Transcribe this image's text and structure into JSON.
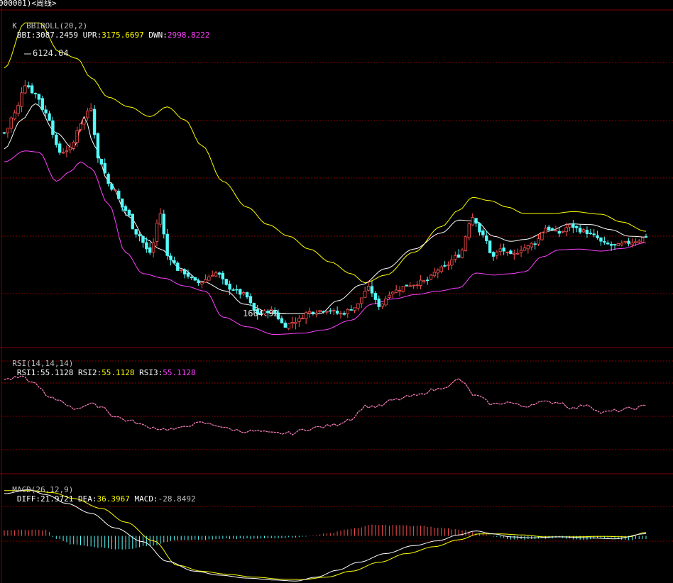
{
  "window": {
    "title": "000001)<周线>"
  },
  "panels": {
    "kline": {
      "indicator": "K  BBIBOLL(20,2)",
      "values": [
        {
          "label": "BBI:",
          "value": "3087.2459",
          "color": "#ffffff"
        },
        {
          "label": "UPR:",
          "value": "3175.6697",
          "color": "#ffff00"
        },
        {
          "label": "DWN:",
          "value": "2998.8222",
          "color": "#ff40ff"
        }
      ],
      "high_label": "6124.04",
      "low_label": "1664.92"
    },
    "rsi": {
      "indicator": "RSI(14,14,14)",
      "values": [
        {
          "label": "RSI1:",
          "value": "55.1128",
          "color": "#ffffff"
        },
        {
          "label": "RSI2:",
          "value": "55.1128",
          "color": "#ffff00"
        },
        {
          "label": "RSI3:",
          "value": "55.1128",
          "color": "#ff40ff"
        }
      ]
    },
    "macd": {
      "indicator": "MACD(26,12,9)",
      "values": [
        {
          "label": "DIFF:",
          "value": "21.9721",
          "color": "#ffffff"
        },
        {
          "label": "DEA:",
          "value": "36.3967",
          "color": "#ffff00"
        },
        {
          "label": "MACD:",
          "value": "-28.8492",
          "color": "#c0c0c0"
        }
      ]
    }
  },
  "colors": {
    "background": "#000000",
    "grid": "#800000",
    "up": "#ff5050",
    "down": "#54fcfc",
    "bbi": "#ffffff",
    "upr": "#ffff00",
    "dwn": "#ff40ff",
    "rsi": "#ff80c0",
    "diff": "#ffffff",
    "dea": "#ffff00"
  },
  "chart_data": [
    {
      "type": "candlestick",
      "ylim": [
        1400,
        6600
      ],
      "high": 6124.04,
      "low": 1664.92,
      "bbi_anchors": [
        [
          0,
          4450
        ],
        [
          5,
          4900
        ],
        [
          9,
          5150
        ],
        [
          15,
          4700
        ],
        [
          20,
          4450
        ],
        [
          23,
          4950
        ],
        [
          26,
          4500
        ],
        [
          30,
          3950
        ],
        [
          36,
          3400
        ],
        [
          41,
          3050
        ],
        [
          45,
          2900
        ],
        [
          51,
          2600
        ],
        [
          57,
          2400
        ],
        [
          64,
          2250
        ],
        [
          69,
          2050
        ],
        [
          78,
          1900
        ],
        [
          85,
          1900
        ],
        [
          91,
          1900
        ],
        [
          96,
          2100
        ],
        [
          103,
          2350
        ],
        [
          110,
          2600
        ],
        [
          118,
          2900
        ],
        [
          126,
          3150
        ],
        [
          131,
          3350
        ],
        [
          136,
          3330
        ],
        [
          141,
          3100
        ],
        [
          146,
          3020
        ],
        [
          150,
          3050
        ],
        [
          157,
          3180
        ],
        [
          163,
          3290
        ],
        [
          169,
          3280
        ],
        [
          175,
          3200
        ],
        [
          180,
          3100
        ],
        [
          185,
          3087
        ]
      ],
      "upr_anchors": [
        [
          0,
          5700
        ],
        [
          6,
          6400
        ],
        [
          10,
          6400
        ],
        [
          16,
          5950
        ],
        [
          21,
          5850
        ],
        [
          25,
          5550
        ],
        [
          30,
          5250
        ],
        [
          36,
          5100
        ],
        [
          42,
          4950
        ],
        [
          47,
          5100
        ],
        [
          52,
          4900
        ],
        [
          57,
          4500
        ],
        [
          63,
          3950
        ],
        [
          70,
          3550
        ],
        [
          76,
          3280
        ],
        [
          82,
          3100
        ],
        [
          88,
          2900
        ],
        [
          94,
          2700
        ],
        [
          100,
          2520
        ],
        [
          104,
          2380
        ],
        [
          110,
          2500
        ],
        [
          118,
          2850
        ],
        [
          126,
          3250
        ],
        [
          131,
          3500
        ],
        [
          135,
          3700
        ],
        [
          140,
          3650
        ],
        [
          145,
          3550
        ],
        [
          150,
          3450
        ],
        [
          158,
          3450
        ],
        [
          164,
          3480
        ],
        [
          172,
          3440
        ],
        [
          178,
          3320
        ],
        [
          185,
          3176
        ]
      ],
      "dwn_anchors": [
        [
          0,
          4250
        ],
        [
          6,
          4420
        ],
        [
          10,
          4400
        ],
        [
          15,
          3950
        ],
        [
          19,
          4100
        ],
        [
          22,
          4250
        ],
        [
          25,
          4150
        ],
        [
          30,
          3600
        ],
        [
          35,
          2850
        ],
        [
          40,
          2520
        ],
        [
          46,
          2450
        ],
        [
          52,
          2330
        ],
        [
          58,
          2250
        ],
        [
          63,
          1850
        ],
        [
          70,
          1700
        ],
        [
          78,
          1580
        ],
        [
          86,
          1600
        ],
        [
          92,
          1650
        ],
        [
          100,
          1800
        ],
        [
          106,
          2050
        ],
        [
          112,
          2130
        ],
        [
          119,
          2200
        ],
        [
          125,
          2250
        ],
        [
          131,
          2300
        ],
        [
          136,
          2530
        ],
        [
          141,
          2500
        ],
        [
          146,
          2520
        ],
        [
          150,
          2550
        ],
        [
          155,
          2780
        ],
        [
          160,
          2890
        ],
        [
          166,
          2900
        ],
        [
          172,
          2870
        ],
        [
          178,
          2910
        ],
        [
          185,
          2999
        ]
      ],
      "close_anchors": [
        [
          0,
          4700
        ],
        [
          3,
          5000
        ],
        [
          6,
          5450
        ],
        [
          9,
          5300
        ],
        [
          12,
          5000
        ],
        [
          16,
          4400
        ],
        [
          19,
          4450
        ],
        [
          22,
          4850
        ],
        [
          25,
          5100
        ],
        [
          27,
          4300
        ],
        [
          31,
          3850
        ],
        [
          35,
          3500
        ],
        [
          38,
          3150
        ],
        [
          42,
          2850
        ],
        [
          45,
          3450
        ],
        [
          47,
          2800
        ],
        [
          51,
          2550
        ],
        [
          56,
          2380
        ],
        [
          61,
          2530
        ],
        [
          65,
          2300
        ],
        [
          69,
          2200
        ],
        [
          73,
          1900
        ],
        [
          77,
          1950
        ],
        [
          81,
          1720
        ],
        [
          84,
          1790
        ],
        [
          88,
          1930
        ],
        [
          93,
          1960
        ],
        [
          97,
          1900
        ],
        [
          101,
          2000
        ],
        [
          105,
          2300
        ],
        [
          108,
          2030
        ],
        [
          112,
          2250
        ],
        [
          117,
          2350
        ],
        [
          121,
          2400
        ],
        [
          126,
          2600
        ],
        [
          131,
          2800
        ],
        [
          135,
          3400
        ],
        [
          138,
          3100
        ],
        [
          141,
          2780
        ],
        [
          143,
          2900
        ],
        [
          146,
          2800
        ],
        [
          150,
          2920
        ],
        [
          153,
          3000
        ],
        [
          156,
          3230
        ],
        [
          160,
          3150
        ],
        [
          163,
          3260
        ],
        [
          167,
          3180
        ],
        [
          170,
          3100
        ],
        [
          173,
          2980
        ],
        [
          176,
          2950
        ],
        [
          180,
          3000
        ],
        [
          183,
          3040
        ],
        [
          185,
          3100
        ]
      ],
      "series": [
        {
          "name": "BBI"
        },
        {
          "name": "UPR"
        },
        {
          "name": "DWN"
        }
      ]
    },
    {
      "type": "line",
      "series": [
        {
          "name": "RSI1"
        }
      ],
      "anchors": [
        [
          0,
          68
        ],
        [
          5,
          69
        ],
        [
          9,
          66
        ],
        [
          13,
          59
        ],
        [
          16,
          58
        ],
        [
          20,
          54
        ],
        [
          25,
          56
        ],
        [
          28,
          55
        ],
        [
          32,
          50
        ],
        [
          36,
          48
        ],
        [
          42,
          45
        ],
        [
          46,
          44
        ],
        [
          50,
          44
        ],
        [
          53,
          46
        ],
        [
          57,
          47
        ],
        [
          61,
          46
        ],
        [
          65,
          44
        ],
        [
          69,
          43
        ],
        [
          73,
          43
        ],
        [
          77,
          42
        ],
        [
          83,
          42
        ],
        [
          87,
          44
        ],
        [
          91,
          45
        ],
        [
          95,
          46
        ],
        [
          100,
          49
        ],
        [
          104,
          55
        ],
        [
          108,
          55
        ],
        [
          112,
          58
        ],
        [
          118,
          60
        ],
        [
          124,
          63
        ],
        [
          128,
          65
        ],
        [
          131,
          68
        ],
        [
          136,
          60
        ],
        [
          141,
          56
        ],
        [
          145,
          57
        ],
        [
          150,
          55
        ],
        [
          154,
          57
        ],
        [
          160,
          57
        ],
        [
          164,
          54
        ],
        [
          168,
          56
        ],
        [
          172,
          52
        ],
        [
          177,
          53
        ],
        [
          181,
          54
        ],
        [
          185,
          55.1
        ]
      ]
    },
    {
      "type": "line+histogram",
      "series": [
        {
          "name": "DIFF"
        },
        {
          "name": "DEA"
        },
        {
          "name": "MACD"
        }
      ],
      "ylim": [
        -480,
        560
      ],
      "diff_anchors": [
        [
          0,
          430
        ],
        [
          7,
          470
        ],
        [
          12,
          420
        ],
        [
          18,
          330
        ],
        [
          25,
          230
        ],
        [
          32,
          80
        ],
        [
          40,
          -60
        ],
        [
          47,
          -260
        ],
        [
          55,
          -360
        ],
        [
          62,
          -400
        ],
        [
          70,
          -430
        ],
        [
          78,
          -450
        ],
        [
          84,
          -460
        ],
        [
          90,
          -420
        ],
        [
          96,
          -350
        ],
        [
          102,
          -270
        ],
        [
          110,
          -180
        ],
        [
          118,
          -100
        ],
        [
          125,
          -50
        ],
        [
          131,
          10
        ],
        [
          136,
          50
        ],
        [
          141,
          20
        ],
        [
          146,
          -10
        ],
        [
          152,
          -20
        ],
        [
          160,
          -10
        ],
        [
          168,
          -20
        ],
        [
          176,
          -30
        ],
        [
          185,
          22
        ]
      ],
      "dea_anchors": [
        [
          0,
          460
        ],
        [
          8,
          460
        ],
        [
          14,
          440
        ],
        [
          20,
          380
        ],
        [
          28,
          280
        ],
        [
          35,
          140
        ],
        [
          43,
          -50
        ],
        [
          50,
          -300
        ],
        [
          57,
          -360
        ],
        [
          64,
          -390
        ],
        [
          72,
          -420
        ],
        [
          80,
          -440
        ],
        [
          86,
          -445
        ],
        [
          93,
          -420
        ],
        [
          100,
          -360
        ],
        [
          108,
          -270
        ],
        [
          116,
          -180
        ],
        [
          124,
          -110
        ],
        [
          131,
          -40
        ],
        [
          137,
          20
        ],
        [
          143,
          20
        ],
        [
          149,
          10
        ],
        [
          156,
          -10
        ],
        [
          164,
          -10
        ],
        [
          172,
          -5
        ],
        [
          180,
          -10
        ],
        [
          185,
          36
        ]
      ],
      "hist_anchors": [
        [
          0,
          60
        ],
        [
          12,
          60
        ],
        [
          15,
          -30
        ],
        [
          20,
          -90
        ],
        [
          28,
          -120
        ],
        [
          34,
          -140
        ],
        [
          42,
          -100
        ],
        [
          50,
          -40
        ],
        [
          58,
          -40
        ],
        [
          65,
          -30
        ],
        [
          72,
          -30
        ],
        [
          80,
          -20
        ],
        [
          86,
          -10
        ],
        [
          92,
          20
        ],
        [
          100,
          70
        ],
        [
          106,
          110
        ],
        [
          112,
          110
        ],
        [
          120,
          100
        ],
        [
          126,
          80
        ],
        [
          132,
          60
        ],
        [
          137,
          30
        ],
        [
          141,
          -10
        ],
        [
          147,
          -40
        ],
        [
          153,
          -30
        ],
        [
          160,
          -20
        ],
        [
          166,
          -40
        ],
        [
          174,
          -20
        ],
        [
          180,
          -40
        ],
        [
          185,
          -29
        ]
      ]
    }
  ]
}
